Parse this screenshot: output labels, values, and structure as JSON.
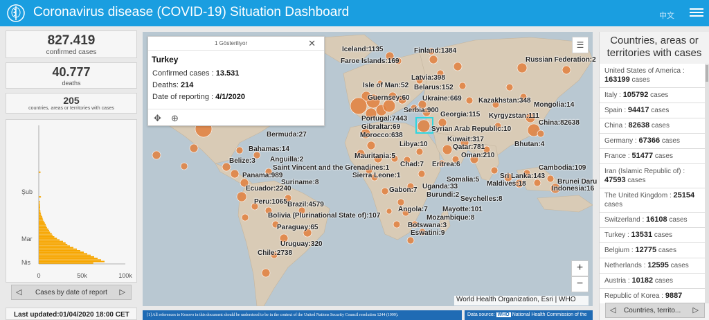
{
  "header": {
    "title": "Coronavirus disease (COVID-19) Situation Dashboard",
    "language_link": "中文",
    "logo": "who-emblem-icon",
    "menu_icon": "hamburger-menu-icon",
    "background_color": "#1a9ee0"
  },
  "stats": {
    "confirmed": {
      "value": "827.419",
      "label": "confirmed cases"
    },
    "deaths": {
      "value": "40.777",
      "label": "deaths"
    },
    "countries": {
      "value": "205",
      "label": "countries, areas or territories with cases"
    }
  },
  "epi_chart": {
    "nav_label": "Cases by date of report",
    "prev_icon": "triangle-left-icon",
    "next_icon": "triangle-right-icon",
    "bar_color": "#f7a600"
  },
  "chart_data": {
    "type": "bar",
    "orientation": "horizontal",
    "y_tick_labels": [
      "Şub",
      "Mar",
      "Nis"
    ],
    "x_tick_labels": [
      "0",
      "50k",
      "100k"
    ],
    "xlim": [
      0,
      100000
    ],
    "values": [
      0,
      0,
      0,
      0,
      0,
      0,
      0,
      0,
      0,
      0,
      0,
      0,
      0,
      0,
      0,
      0,
      0,
      0,
      0,
      0,
      0,
      0,
      0,
      0,
      0,
      0,
      0,
      0,
      0,
      0,
      2000,
      0,
      0,
      0,
      0,
      0,
      0,
      0,
      0,
      0,
      0,
      0,
      0,
      0,
      0,
      0,
      2500,
      0,
      0,
      1200,
      1000,
      1300,
      1500,
      1500,
      1200,
      1800,
      2000,
      2500,
      3000,
      4000,
      4500,
      5000,
      6000,
      7000,
      8000,
      8500,
      9500,
      11000,
      12000,
      13000,
      15000,
      16000,
      18000,
      21000,
      24000,
      28000,
      31000,
      33000,
      36000,
      40000,
      44000,
      48000,
      52000,
      56000,
      60000,
      64000,
      68000,
      72000,
      76000,
      63000
    ]
  },
  "last_updated": "Last updated:01/04/2020 18:00 CET",
  "map": {
    "popup": {
      "count_label": "1 Gösteriliyor",
      "country": "Turkey",
      "confirmed_label": "Confirmed cases :",
      "confirmed_value": "13.531",
      "deaths_label": "Deaths:",
      "deaths_value": "214",
      "date_label": "Date of reporting :",
      "date_value": "4/1/2020",
      "close_icon": "close-icon",
      "pan_icon": "pan-arrows-icon",
      "zoom_icon": "zoom-to-icon"
    },
    "legend_icon": "legend-list-icon",
    "zoom_in": "+",
    "zoom_out": "−",
    "attribution": "World Health Organization, Esri | WHO",
    "ocean_color": "#b9c8d2",
    "land_color": "#d9cbb6",
    "bubble_color": "#e0803e",
    "labels": [
      "Iceland:1135",
      "Finland:1384",
      "Faroe Islands:169",
      "Russian Federation:2",
      "Latvia:398",
      "Isle of Man:52",
      "Belarus:152",
      "Guernsey:60",
      "Ukraine:669",
      "Kazakhstan:348",
      "Mongolia:14",
      "Serbia:900",
      "Portugal:7443",
      "Georgia:115",
      "Kyrgyzstan:111",
      "Gibraltar:69",
      "China:82638",
      "Syrian Arab Republic:10",
      "Morocco:638",
      "Kuwait:317",
      "Libya:10",
      "Qatar:781",
      "Bhutan:4",
      "Bermuda:27",
      "Oman:210",
      "Bahamas:14",
      "Mauritania:5",
      "Belize:3",
      "Anguilla:2",
      "Chad:7",
      "Eritrea:6",
      "Cambodia:109",
      "Saint Vincent and the Grenadines:1",
      "Sri Lanka:143",
      "Brunei Daru",
      "Panama:989",
      "Sierra Leone:1",
      "Maldives:18",
      "Indonesia:16",
      "Somalia:5",
      "Suriname:8",
      "Uganda:33",
      "Ecuador:2240",
      "Gabon:7",
      "Seychelles:8",
      "Burundi:2",
      "Peru:1065",
      "Brazil:4579",
      "Angola:7",
      "Mayotte:101",
      "Bolivia (Plurinational State of):107",
      "Mozambique:8",
      "Paraguay:65",
      "Botswana:3",
      "Eswatini:9",
      "Uruguay:320",
      "Chile:2738"
    ]
  },
  "footer": {
    "disclaimer": "[1] All references to Kosovo in this document should be understood to be in the context of the United Nations Security Council resolution 1244 (1999).",
    "data_source_label": "Data source:",
    "data_source_who": "WHO",
    "data_source_rest": "National Health Commission of the"
  },
  "right_panel": {
    "title": "Countries, areas or territories with cases",
    "nav_label": "Countries, territo...",
    "cases_suffix": "cases",
    "countries": [
      {
        "name": "United States of America :",
        "cases": "163199"
      },
      {
        "name": "Italy :",
        "cases": "105792"
      },
      {
        "name": "Spain :",
        "cases": "94417"
      },
      {
        "name": "China :",
        "cases": "82638"
      },
      {
        "name": "Germany :",
        "cases": "67366"
      },
      {
        "name": "France :",
        "cases": "51477"
      },
      {
        "name": "Iran (Islamic Republic of) :",
        "cases": "47593"
      },
      {
        "name": "The United Kingdom :",
        "cases": "25154"
      },
      {
        "name": "Switzerland :",
        "cases": "16108"
      },
      {
        "name": "Turkey :",
        "cases": "13531"
      },
      {
        "name": "Belgium :",
        "cases": "12775"
      },
      {
        "name": "Netherlands :",
        "cases": "12595"
      },
      {
        "name": "Austria :",
        "cases": "10182"
      },
      {
        "name": "Republic of Korea :",
        "cases": "9887"
      }
    ]
  }
}
